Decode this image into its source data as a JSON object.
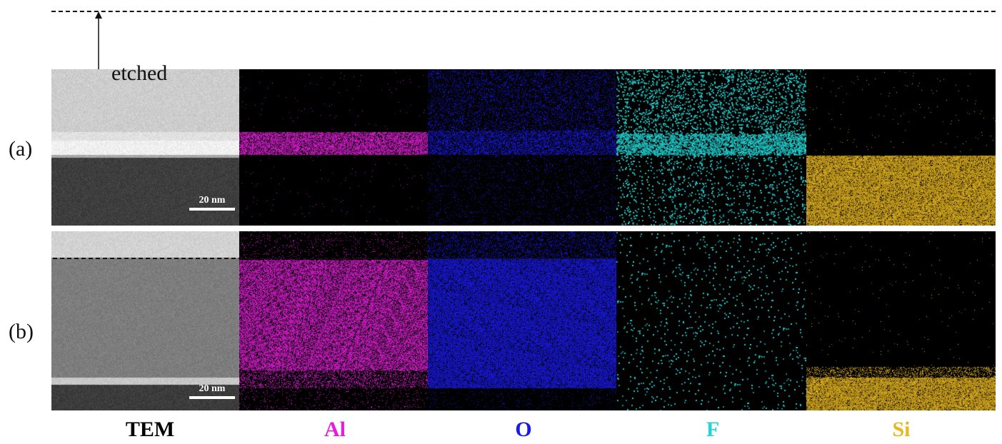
{
  "row_labels": [
    "(a)",
    "(b)"
  ],
  "etched_label": "etched",
  "scale_bar_label": "20 nm",
  "columns": [
    {
      "label": "TEM",
      "color": "#000000"
    },
    {
      "label": "Al",
      "color": "#e61edc"
    },
    {
      "label": "O",
      "color": "#1a1ae6"
    },
    {
      "label": "F",
      "color": "#22d6d6"
    },
    {
      "label": "Si",
      "color": "#e9b820"
    }
  ]
}
